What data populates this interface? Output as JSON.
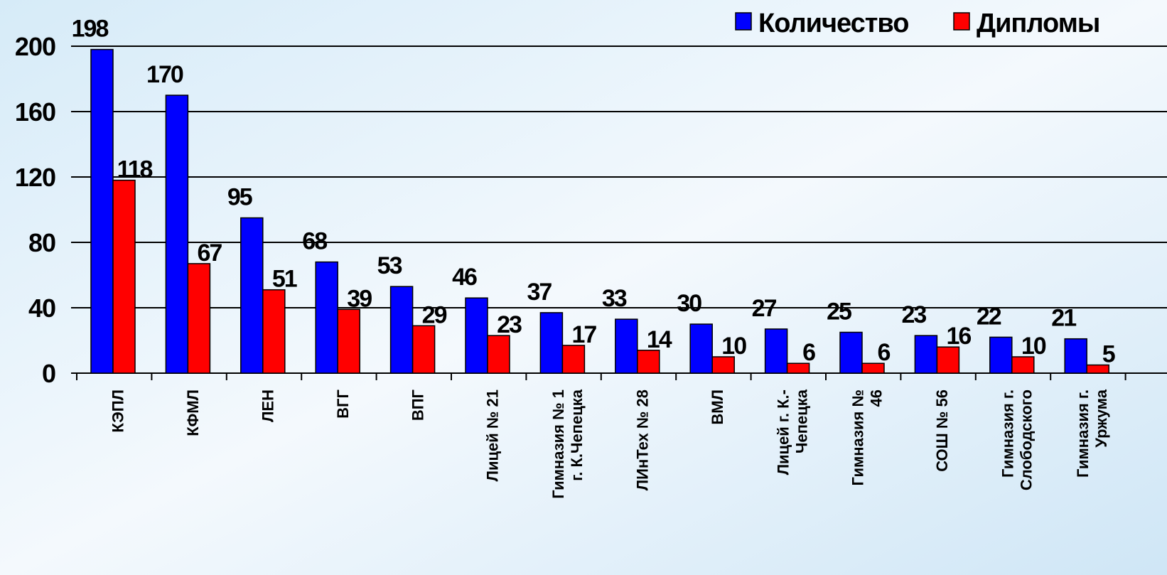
{
  "chart_data": {
    "type": "bar",
    "categories": [
      "КЭПЛ",
      "КФМЛ",
      "ЛЕН",
      "ВГГ",
      "ВПГ",
      "Лицей № 21",
      "Гимназия № 1\nг. К.Чепецка",
      "ЛИнТех № 28",
      "ВМЛ",
      "Лицей г. К.-\nЧепецка",
      "Гимназия №\n46",
      "СОШ № 56",
      "Гимназия г.\nСлободского",
      "Гимназия г.\nУржума"
    ],
    "series": [
      {
        "name": "Количество",
        "color": "#0000ff",
        "values": [
          198,
          170,
          95,
          68,
          53,
          46,
          37,
          33,
          30,
          27,
          25,
          23,
          22,
          21
        ]
      },
      {
        "name": "Дипломы",
        "color": "#ff0000",
        "values": [
          118,
          67,
          51,
          39,
          29,
          23,
          17,
          14,
          10,
          6,
          6,
          16,
          10,
          5
        ]
      }
    ],
    "ylim": [
      0,
      200
    ],
    "yticks": [
      0,
      40,
      80,
      120,
      160,
      200
    ],
    "grid": true,
    "legend": "top-right"
  }
}
